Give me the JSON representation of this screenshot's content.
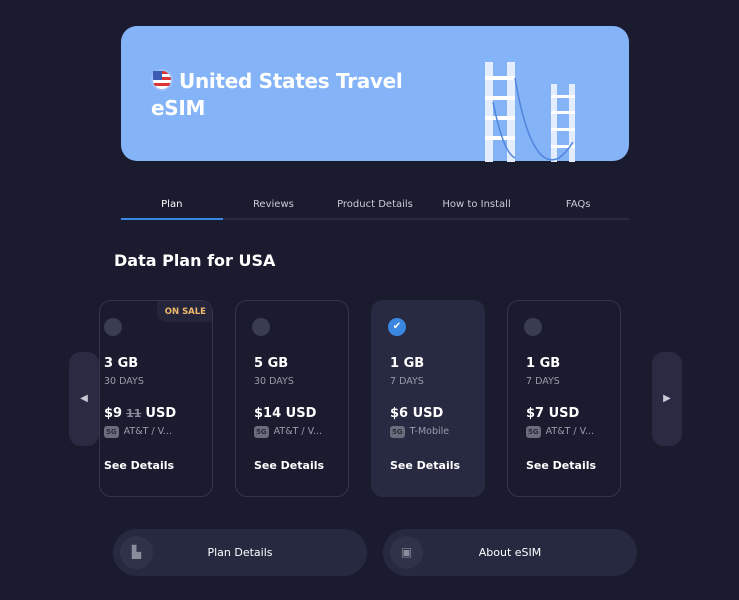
{
  "hero": {
    "title": "United States Travel eSIM",
    "flag_icon": "us-flag-icon",
    "illustration": "golden-gate-bridge"
  },
  "tabs": [
    {
      "label": "Plan",
      "active": true
    },
    {
      "label": "Reviews"
    },
    {
      "label": "Product Details"
    },
    {
      "label": "How to Install"
    },
    {
      "label": "FAQs"
    }
  ],
  "section_title": "Data Plan for USA",
  "plans": [
    {
      "data": "3 GB",
      "days": "30 DAYS",
      "price": "$9",
      "old_price": "11",
      "currency": "USD",
      "network": "AT&T / V...",
      "network_badge": "5G",
      "details": "See Details",
      "badge": "ON SALE",
      "selected": false
    },
    {
      "data": "5 GB",
      "days": "30 DAYS",
      "price": "$14",
      "currency": "USD",
      "network": "AT&T / V...",
      "network_badge": "5G",
      "details": "See Details",
      "selected": false
    },
    {
      "data": "1 GB",
      "days": "7 DAYS",
      "price": "$6",
      "currency": "USD",
      "network": "T-Mobile",
      "network_badge": "5G",
      "details": "See Details",
      "selected": true
    },
    {
      "data": "1 GB",
      "days": "7 DAYS",
      "price": "$7",
      "currency": "USD",
      "network": "AT&T / V...",
      "network_badge": "5G",
      "details": "See Details",
      "selected": false
    }
  ],
  "nav": {
    "prev": "◀",
    "next": "▶"
  },
  "buttons": {
    "plan_details": "Plan Details",
    "about_esim": "About eSIM"
  },
  "colors": {
    "background": "#1b1b2f",
    "hero": "#84b3f7",
    "accent": "#3a86e0",
    "sale": "#f0b96c"
  }
}
